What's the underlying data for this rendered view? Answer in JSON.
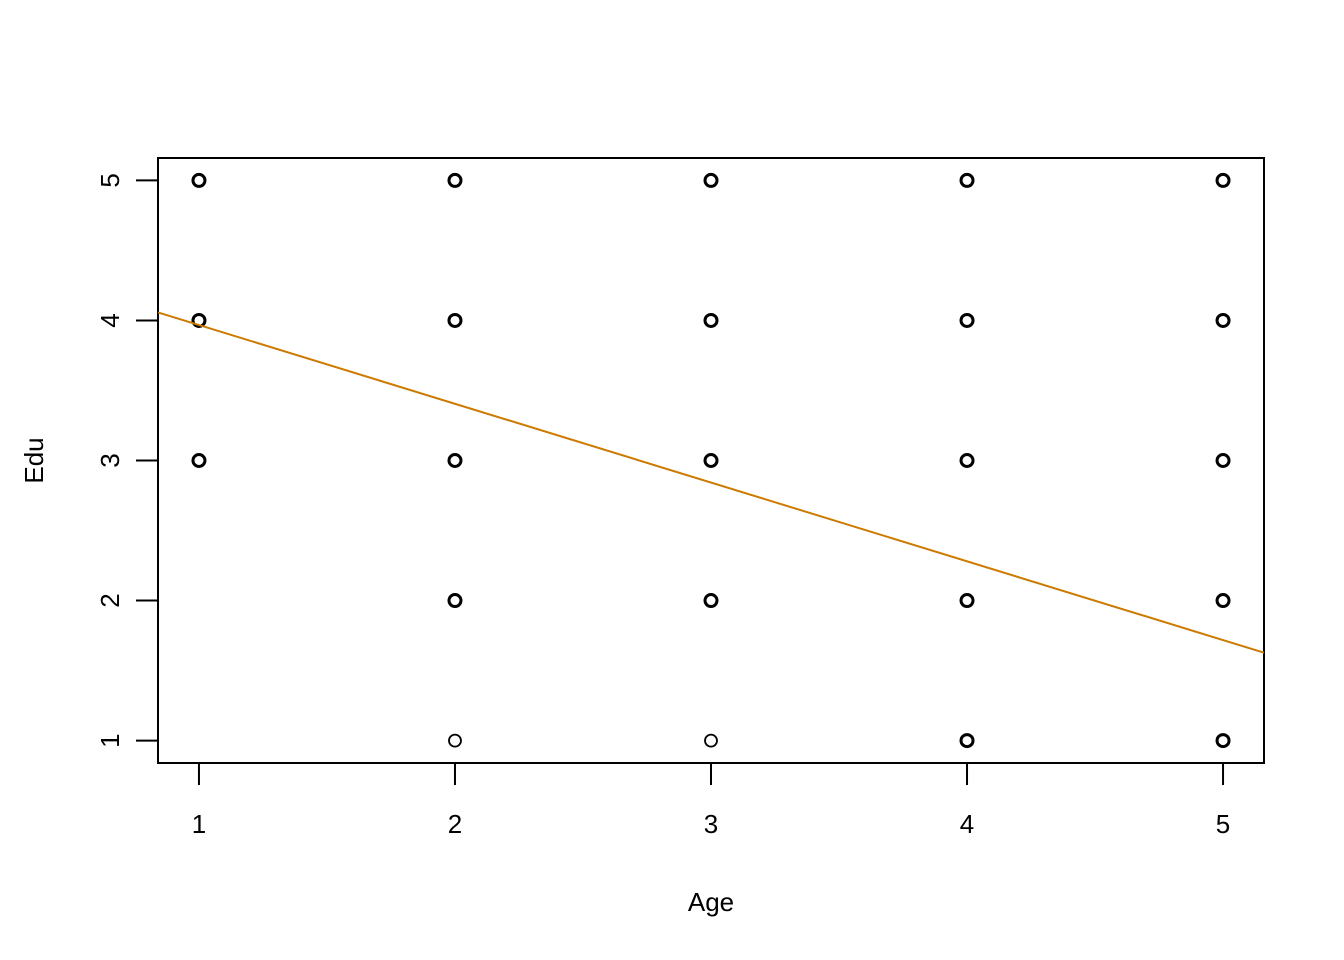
{
  "chart_data": {
    "type": "scatter",
    "title": "",
    "xlabel": "Age",
    "ylabel": "Edu",
    "x_ticks": [
      1,
      2,
      3,
      4,
      5
    ],
    "y_ticks": [
      1,
      2,
      3,
      4,
      5
    ],
    "xlim": [
      0.84,
      5.16
    ],
    "ylim": [
      0.84,
      5.16
    ],
    "grid": false,
    "legend": "none",
    "points": [
      {
        "x": 1,
        "y": 5,
        "bold": true
      },
      {
        "x": 1,
        "y": 4,
        "bold": true
      },
      {
        "x": 1,
        "y": 3,
        "bold": true
      },
      {
        "x": 2,
        "y": 5,
        "bold": true
      },
      {
        "x": 2,
        "y": 4,
        "bold": true
      },
      {
        "x": 2,
        "y": 3,
        "bold": true
      },
      {
        "x": 2,
        "y": 2,
        "bold": true
      },
      {
        "x": 2,
        "y": 1,
        "bold": false
      },
      {
        "x": 3,
        "y": 5,
        "bold": true
      },
      {
        "x": 3,
        "y": 4,
        "bold": true
      },
      {
        "x": 3,
        "y": 3,
        "bold": true
      },
      {
        "x": 3,
        "y": 2,
        "bold": true
      },
      {
        "x": 3,
        "y": 1,
        "bold": false
      },
      {
        "x": 4,
        "y": 5,
        "bold": true
      },
      {
        "x": 4,
        "y": 4,
        "bold": true
      },
      {
        "x": 4,
        "y": 3,
        "bold": true
      },
      {
        "x": 4,
        "y": 2,
        "bold": true
      },
      {
        "x": 4,
        "y": 1,
        "bold": true
      },
      {
        "x": 5,
        "y": 5,
        "bold": true
      },
      {
        "x": 5,
        "y": 4,
        "bold": true
      },
      {
        "x": 5,
        "y": 3,
        "bold": true
      },
      {
        "x": 5,
        "y": 2,
        "bold": true
      },
      {
        "x": 5,
        "y": 1,
        "bold": true
      }
    ],
    "regression_line": {
      "intercept": 4.53,
      "slope": -0.5625,
      "color": "#CC7A00"
    },
    "point_color": "#000000",
    "marker": "open-circle"
  }
}
